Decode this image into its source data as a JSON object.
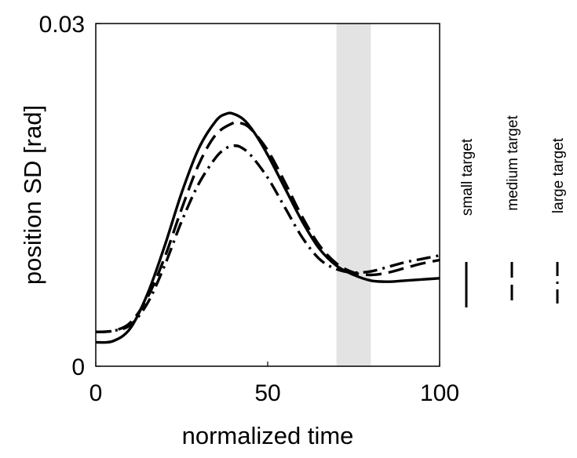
{
  "chart_data": {
    "type": "line",
    "title": "",
    "xlabel": "normalized time",
    "ylabel": "position SD [rad]",
    "xlim": [
      0,
      100
    ],
    "ylim": [
      0,
      0.03
    ],
    "xticks": [
      0,
      50,
      100
    ],
    "xtick_labels": [
      "0",
      "50",
      "100"
    ],
    "yticks": [
      0,
      0.03
    ],
    "ytick_labels": [
      "0",
      "0.03"
    ],
    "grid": false,
    "shaded_region": {
      "x_start": 70,
      "x_end": 80,
      "color": "#e3e3e3"
    },
    "legend_position": "right",
    "series": [
      {
        "name": "small target",
        "style": "solid",
        "x": [
          0,
          5,
          10,
          15,
          20,
          25,
          30,
          35,
          38,
          40,
          43,
          46,
          50,
          55,
          60,
          65,
          70,
          75,
          80,
          85,
          90,
          95,
          100
        ],
        "values": [
          0.0021,
          0.0022,
          0.0033,
          0.0063,
          0.0105,
          0.0152,
          0.0191,
          0.0215,
          0.0221,
          0.0221,
          0.0216,
          0.0205,
          0.0185,
          0.0156,
          0.0127,
          0.0103,
          0.0088,
          0.008,
          0.0075,
          0.0074,
          0.0075,
          0.0076,
          0.0077
        ]
      },
      {
        "name": "medium target",
        "style": "dashed",
        "x": [
          0,
          5,
          10,
          15,
          20,
          25,
          30,
          35,
          40,
          42,
          45,
          50,
          55,
          60,
          65,
          70,
          75,
          80,
          85,
          90,
          95,
          100
        ],
        "values": [
          0.003,
          0.0031,
          0.0038,
          0.006,
          0.0095,
          0.0138,
          0.0177,
          0.0203,
          0.0213,
          0.0213,
          0.0208,
          0.0189,
          0.0161,
          0.0131,
          0.0106,
          0.009,
          0.0082,
          0.008,
          0.0082,
          0.0086,
          0.009,
          0.0093
        ]
      },
      {
        "name": "large target",
        "style": "dashdot",
        "x": [
          0,
          5,
          10,
          15,
          20,
          25,
          30,
          35,
          38,
          40,
          42,
          45,
          50,
          55,
          60,
          65,
          70,
          75,
          80,
          85,
          90,
          95,
          100
        ],
        "values": [
          0.003,
          0.0031,
          0.0036,
          0.0055,
          0.0088,
          0.0127,
          0.016,
          0.0183,
          0.0191,
          0.0193,
          0.0192,
          0.0185,
          0.0165,
          0.0139,
          0.0113,
          0.0094,
          0.0085,
          0.0082,
          0.0083,
          0.0087,
          0.0091,
          0.0094,
          0.0097
        ]
      }
    ]
  }
}
